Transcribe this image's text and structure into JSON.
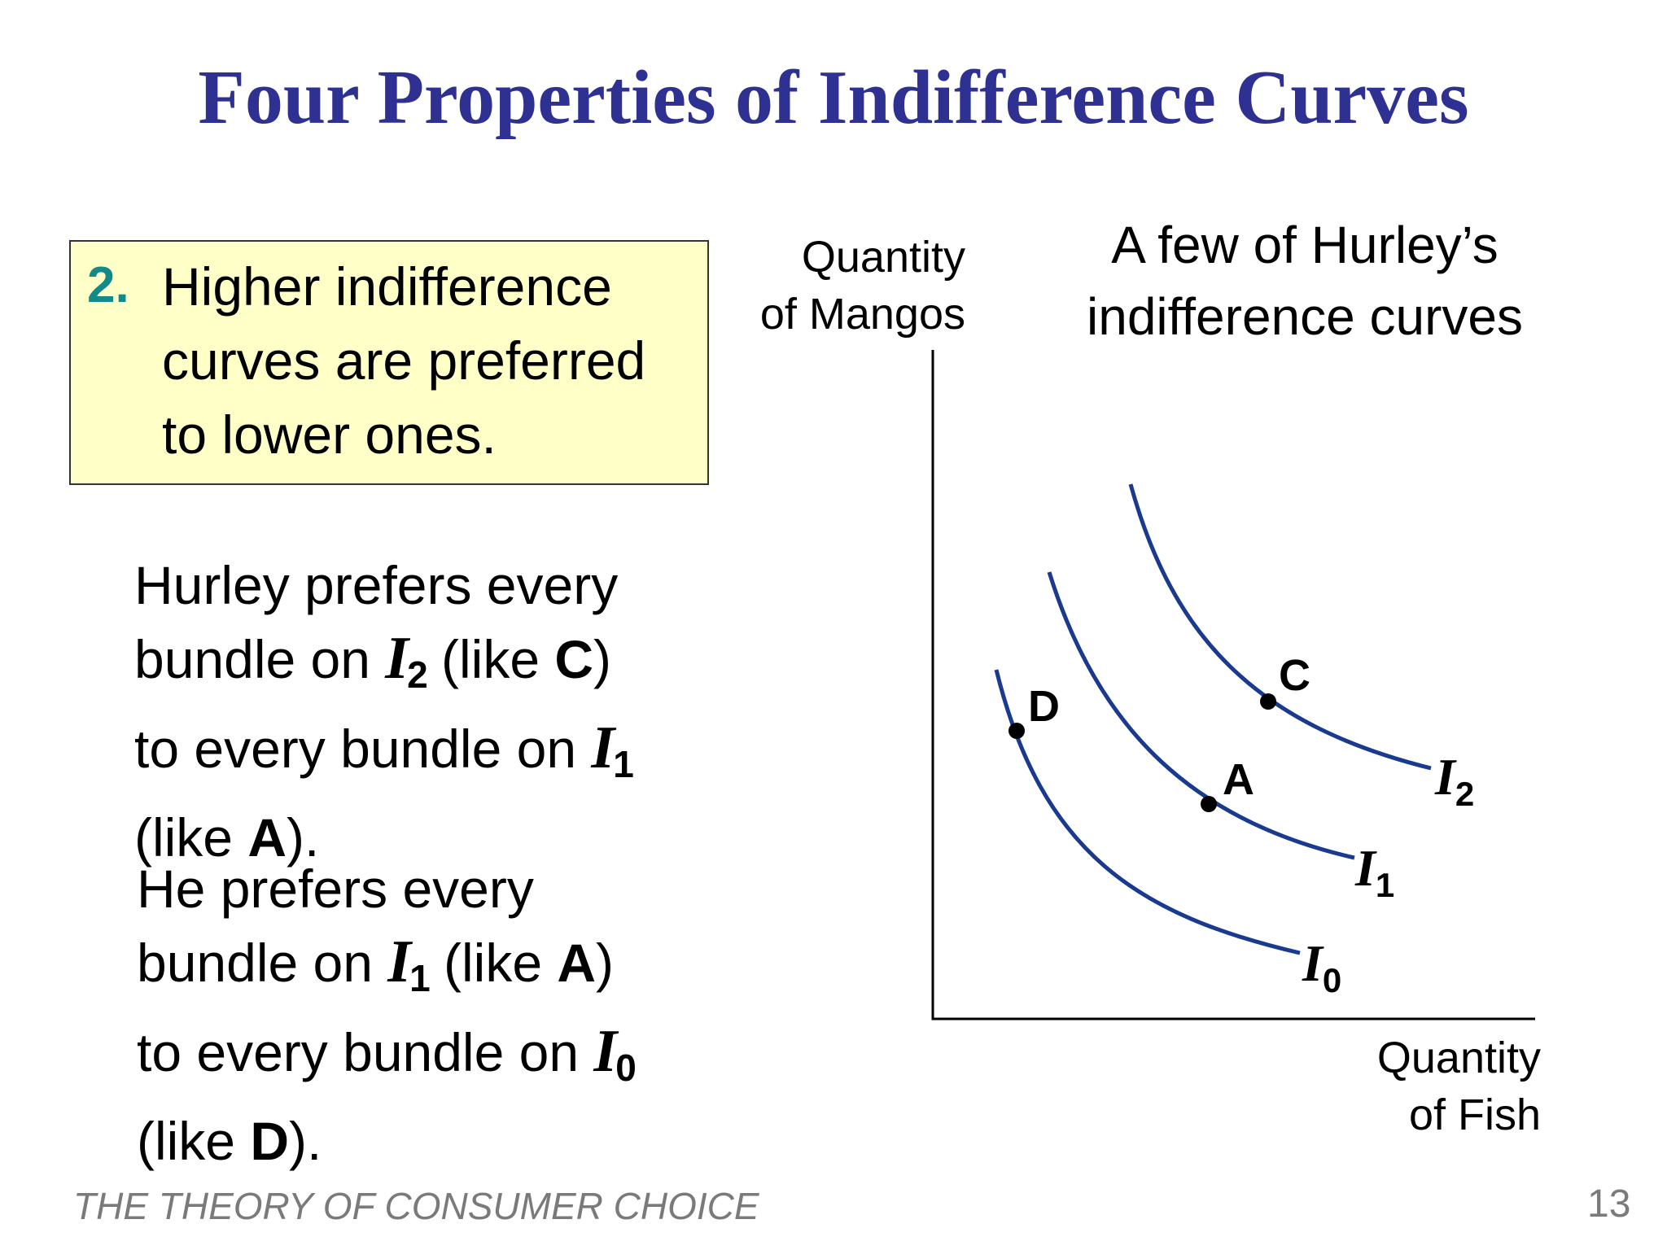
{
  "title": "Four Properties of Indifference Curves",
  "callout": {
    "number": "2.",
    "lines": [
      "Higher indifference",
      "curves are preferred",
      "to lower ones."
    ]
  },
  "paragraph1": {
    "l1": "Hurley prefers every",
    "l2_a": "bundle on ",
    "l2_curve": "I",
    "l2_sub": "2",
    "l2_b": " (like ",
    "l2_point": "C",
    "l2_c": ")",
    "l3_a": "to every bundle on ",
    "l3_curve": "I",
    "l3_sub": "1",
    "l4_a": "(like ",
    "l4_point": "A",
    "l4_b": ")."
  },
  "paragraph2": {
    "l1": "He prefers every",
    "l2_a": "bundle on ",
    "l2_curve": "I",
    "l2_sub": "1",
    "l2_b": " (like ",
    "l2_point": "A",
    "l2_c": ")",
    "l3_a": "to every bundle on ",
    "l3_curve": "I",
    "l3_sub": "0",
    "l4_a": "(like ",
    "l4_point": "D",
    "l4_b": ")."
  },
  "diagram": {
    "y_axis_label": [
      "Quantity",
      "of Mangos"
    ],
    "x_axis_label": [
      "Quantity",
      "of Fish"
    ],
    "caption": [
      "A few of Hurley’s",
      "indifference curves"
    ],
    "curves": [
      {
        "name": "I",
        "sub": "0"
      },
      {
        "name": "I",
        "sub": "1"
      },
      {
        "name": "I",
        "sub": "2"
      }
    ],
    "points": [
      "D",
      "A",
      "C"
    ],
    "curve_color": "#1a3a8f"
  },
  "footer": "THE THEORY OF CONSUMER CHOICE",
  "page_number": "13"
}
